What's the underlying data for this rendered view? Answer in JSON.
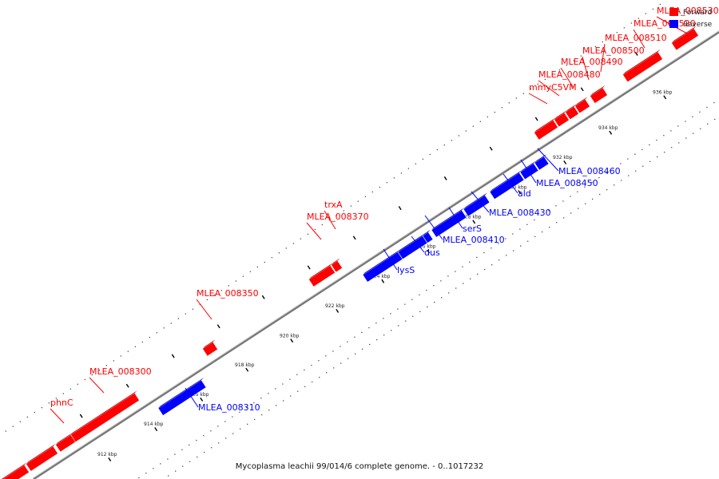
{
  "caption": "Mycoplasma leachii 99/014/6 complete genome. - 0..1017232",
  "legend": [
    {
      "label": "Forward",
      "color": "#ff0000"
    },
    {
      "label": "Reverse",
      "color": "#0000ff"
    }
  ],
  "colors": {
    "forward": "#ff0000",
    "reverse": "#0000ff",
    "backbone": "#888888"
  },
  "tick_labels": [
    "912 kbp",
    "914 kbp",
    "916 kbp",
    "918 kbp",
    "920 kbp",
    "922 kbp",
    "924 kbp",
    "926 kbp",
    "928 kbp",
    "930 kbp",
    "932 kbp",
    "934 kbp",
    "936 kbp"
  ],
  "genes": [
    {
      "name": "MLEA_008300",
      "strand": "forward"
    },
    {
      "name": "phnC",
      "strand": "forward"
    },
    {
      "name": "MLEA_008310",
      "strand": "reverse"
    },
    {
      "name": "MLEA_008350",
      "strand": "forward"
    },
    {
      "name": "MLEA_008370",
      "strand": "forward"
    },
    {
      "name": "trxA",
      "strand": "forward"
    },
    {
      "name": "lysS",
      "strand": "reverse"
    },
    {
      "name": "dus",
      "strand": "reverse"
    },
    {
      "name": "MLEA_008410",
      "strand": "reverse"
    },
    {
      "name": "serS",
      "strand": "reverse"
    },
    {
      "name": "MLEA_008430",
      "strand": "reverse"
    },
    {
      "name": "ald",
      "strand": "reverse"
    },
    {
      "name": "MLEA_008450",
      "strand": "reverse"
    },
    {
      "name": "MLEA_008460",
      "strand": "reverse"
    },
    {
      "name": "mmyC5VM",
      "strand": "forward"
    },
    {
      "name": "MLEA_008480",
      "strand": "forward"
    },
    {
      "name": "MLEA_008490",
      "strand": "forward"
    },
    {
      "name": "MLEA_008500",
      "strand": "forward"
    },
    {
      "name": "MLEA_008510",
      "strand": "forward"
    },
    {
      "name": "MLEA_008520",
      "strand": "forward"
    },
    {
      "name": "MLEA_008530",
      "strand": "forward"
    }
  ]
}
